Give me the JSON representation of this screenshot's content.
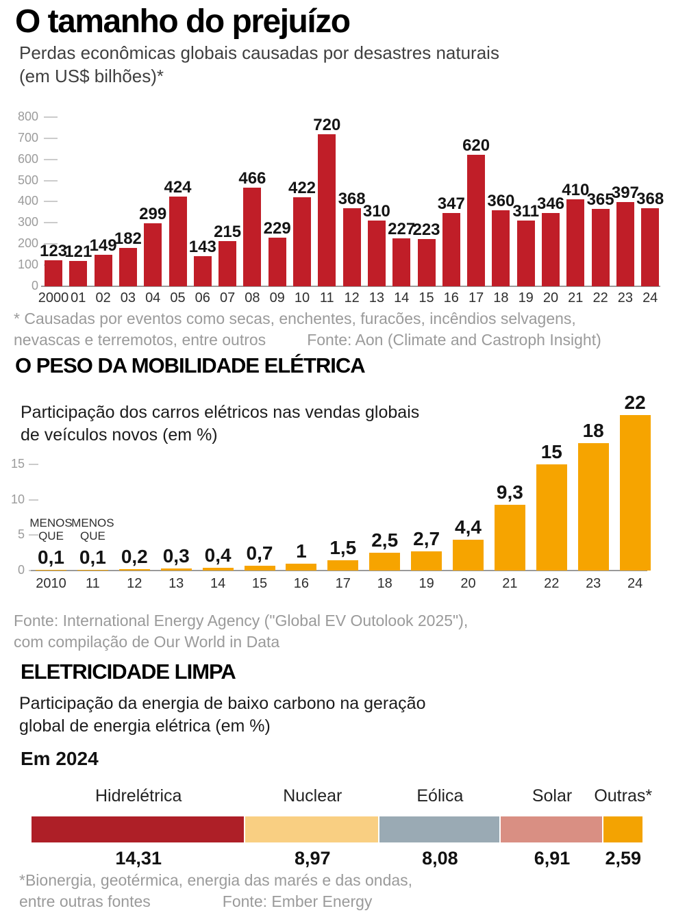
{
  "chart_data": [
    {
      "type": "bar",
      "title": "O tamanho do prejuízo",
      "subtitle_line1": "Perdas econômicas globais causadas por desastres naturais",
      "subtitle_line2": "(em US$ bilhões)*",
      "categories": [
        "2000",
        "01",
        "02",
        "03",
        "04",
        "05",
        "06",
        "07",
        "08",
        "09",
        "10",
        "11",
        "12",
        "13",
        "14",
        "15",
        "16",
        "17",
        "18",
        "19",
        "20",
        "21",
        "22",
        "23",
        "24"
      ],
      "values": [
        123,
        121,
        149,
        182,
        299,
        424,
        143,
        215,
        466,
        229,
        422,
        720,
        368,
        310,
        227,
        223,
        347,
        620,
        360,
        311,
        346,
        410,
        365,
        397,
        368
      ],
      "y_ticks": [
        800,
        700,
        600,
        500,
        400,
        300,
        200,
        100,
        0
      ],
      "ylim": [
        0,
        800
      ],
      "grid": "tick-dashes-only",
      "legend": "none",
      "bar_color": "#c01e28",
      "footnote_line1": "* Causadas por eventos como secas, enchentes, furacões, incêndios selvagens,",
      "footnote_line2": "nevascas e terremotos, entre outros",
      "source": "Fonte: Aon (Climate and Castroph Insight)"
    },
    {
      "type": "bar",
      "heading": "O PESO DA MOBILIDADE ELÉTRICA",
      "subtitle_line1": "Participação dos carros elétricos nas vendas globais",
      "subtitle_line2": "de veículos novos (em %)",
      "categories": [
        "2010",
        "11",
        "12",
        "13",
        "14",
        "15",
        "16",
        "17",
        "18",
        "19",
        "20",
        "21",
        "22",
        "23",
        "24"
      ],
      "values": [
        0.1,
        0.1,
        0.2,
        0.3,
        0.4,
        0.7,
        1,
        1.5,
        2.5,
        2.7,
        4.4,
        9.3,
        15,
        18,
        22
      ],
      "value_labels": [
        "0,1",
        "0,1",
        "0,2",
        "0,3",
        "0,4",
        "0,7",
        "1",
        "1,5",
        "2,5",
        "2,7",
        "4,4",
        "9,3",
        "15",
        "18",
        "22"
      ],
      "value_prefixes": [
        "MENOS QUE",
        "MENOS QUE",
        "",
        "",
        "",
        "",
        "",
        "",
        "",
        "",
        "",
        "",
        "",
        "",
        ""
      ],
      "y_ticks": [
        15,
        10,
        5,
        0
      ],
      "ylim": [
        0,
        16.5
      ],
      "grid": "tick-dashes-only",
      "legend": "none",
      "bar_color": "#f6a400",
      "source_line1": "Fonte: International Energy Agency (\"Global EV Outolook 2025\"),",
      "source_line2": "com compilação de Our World in Data"
    },
    {
      "type": "stacked-bar",
      "heading": "ELETRICIDADE LIMPA",
      "subtitle_line1": "Participação da energia de baixo carbono na geração",
      "subtitle_line2": "global de energia elétrica (em %)",
      "period_label": "Em 2024",
      "segments": [
        {
          "label": "Hidrelétrica",
          "value": 14.31,
          "value_label": "14,31",
          "color": "#ae1f27"
        },
        {
          "label": "Nuclear",
          "value": 8.97,
          "value_label": "8,97",
          "color": "#f9cf82"
        },
        {
          "label": "Eólica",
          "value": 8.08,
          "value_label": "8,08",
          "color": "#9aaab4"
        },
        {
          "label": "Solar",
          "value": 6.91,
          "value_label": "6,91",
          "color": "#d98f83"
        },
        {
          "label": "Outras*",
          "value": 2.59,
          "value_label": "2,59",
          "color": "#f3a302"
        }
      ],
      "footnote_line1": "*Bionergia, geotérmica, energia das marés e das ondas,",
      "footnote_line2": "entre outras fontes",
      "source": "Fonte: Ember Energy"
    }
  ]
}
